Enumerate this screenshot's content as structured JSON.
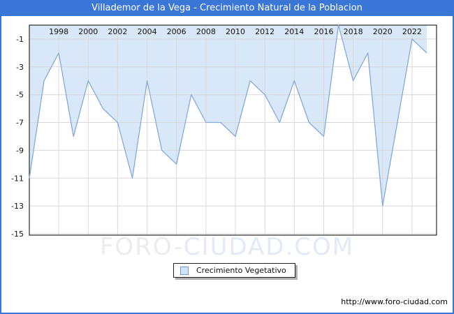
{
  "window": {
    "border_color": "#3a76d6",
    "background": "#ffffff"
  },
  "title_bar": {
    "text": "Villademor de la Vega - Crecimiento Natural de la Poblacion",
    "bg": "#3a76d6",
    "fg": "#ffffff"
  },
  "watermark": {
    "text_gray": "FORO-",
    "text_blue": "CIUDAD.COM"
  },
  "legend": {
    "label": "Crecimiento Vegetativo",
    "swatch_fill": "#cfe2f7",
    "swatch_border": "#6f99cf"
  },
  "footer": {
    "url": "http://www.foro-ciudad.com"
  },
  "chart_data": {
    "type": "area",
    "title": "Villademor de la Vega - Crecimiento Natural de la Poblacion",
    "xlabel": "",
    "ylabel": "",
    "x": [
      1996,
      1997,
      1998,
      1999,
      2000,
      2001,
      2002,
      2003,
      2004,
      2005,
      2006,
      2007,
      2008,
      2009,
      2010,
      2011,
      2012,
      2013,
      2014,
      2015,
      2016,
      2017,
      2018,
      2019,
      2020,
      2021,
      2022,
      2023
    ],
    "series": [
      {
        "name": "Crecimiento Vegetativo",
        "values": [
          -11,
          -4,
          -2,
          -8,
          -4,
          -6,
          -7,
          -11,
          -4,
          -9,
          -10,
          -5,
          -7,
          -7,
          -8,
          -4,
          -5,
          -7,
          -4,
          -7,
          -8,
          0,
          -4,
          -2,
          -13,
          -7,
          -1,
          -2
        ]
      }
    ],
    "ylim": [
      -15,
      0
    ],
    "x_ticks": [
      1998,
      2000,
      2002,
      2004,
      2006,
      2008,
      2010,
      2012,
      2014,
      2016,
      2018,
      2020,
      2022
    ],
    "x_tick_labels": [
      "1998",
      "2000",
      "2002",
      "2004",
      "2006",
      "2008",
      "2010",
      "2012",
      "2014",
      "2016",
      "2018",
      "2020",
      "2022"
    ],
    "y_ticks": [
      -1,
      -3,
      -5,
      -7,
      -9,
      -11,
      -13,
      -15
    ],
    "y_tick_labels": [
      "-1",
      "-3",
      "-5",
      "-7",
      "-9",
      "-11",
      "-13",
      "-15"
    ],
    "grid": true,
    "legend_position": "bottom",
    "colors": {
      "line": "#85aadb",
      "fill": "#d9e8f8",
      "grid": "#d8d8d8",
      "plot_border": "#000000",
      "tick_text": "#111111"
    }
  }
}
